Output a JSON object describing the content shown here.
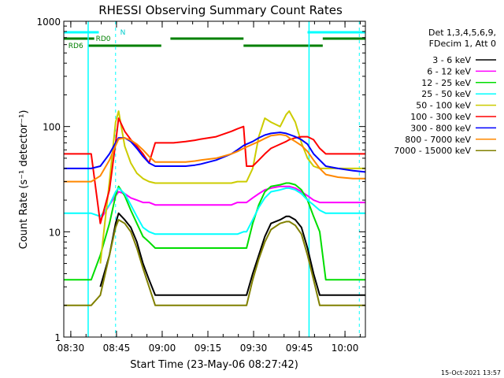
{
  "chart_data": {
    "type": "line",
    "title": "RHESSI Observing Summary Count Rates",
    "xlabel": "Start Time (23-May-06 08:27:42)",
    "ylabel": "Count Rate (s⁻¹ detector⁻¹)",
    "yscale": "log",
    "ylim": [
      1,
      1000
    ],
    "xlim_minutes_after_0827": [
      0,
      99
    ],
    "x_ticks": [
      "08:30",
      "08:45",
      "09:00",
      "09:15",
      "09:30",
      "09:45",
      "10:00"
    ],
    "y_ticks": [
      "1",
      "10",
      "100",
      "1000"
    ],
    "timestamp": "15-Oct-2021 13:57",
    "legend_header": [
      "Det 1,3,4,5,6,9,",
      "FDecim 1, Att 0"
    ],
    "flag_labels": [
      "N",
      "RD0",
      "RD6"
    ],
    "x_minutes": [
      0,
      5,
      9,
      12,
      15,
      17,
      18,
      20,
      22,
      24,
      26,
      28,
      30,
      33,
      36,
      40,
      43,
      45,
      50,
      55,
      57,
      59,
      60,
      62,
      64,
      66,
      68,
      71,
      73,
      74,
      76,
      78,
      80,
      82,
      84,
      86,
      90,
      95,
      99
    ],
    "series": [
      {
        "name": "3 - 6 keV",
        "color": "#000000",
        "values": [
          null,
          null,
          null,
          3,
          6,
          12,
          15,
          13,
          11,
          8,
          5,
          3.5,
          2.5,
          2.5,
          2.5,
          2.5,
          2.5,
          2.5,
          2.5,
          2.5,
          2.5,
          2.5,
          2.5,
          4,
          6,
          9,
          12,
          13,
          14,
          14,
          13,
          11,
          7,
          4,
          2.5,
          2.5,
          2.5,
          2.5,
          2.5
        ]
      },
      {
        "name": "6 - 12 keV",
        "color": "#ff00ff",
        "values": [
          null,
          null,
          null,
          13,
          18,
          22,
          24,
          23,
          21,
          20,
          19,
          19,
          18,
          18,
          18,
          18,
          18,
          18,
          18,
          18,
          19,
          19,
          19,
          21,
          23,
          25,
          26,
          27,
          27,
          27,
          26,
          24,
          22,
          20,
          19,
          19,
          19,
          19,
          19
        ]
      },
      {
        "name": "12 - 25 keV",
        "color": "#00dd00",
        "values": [
          3.5,
          3.5,
          3.5,
          6,
          12,
          22,
          27,
          22,
          16,
          12,
          9,
          8,
          7,
          7,
          7,
          7,
          7,
          7,
          7,
          7,
          7,
          7,
          7,
          12,
          18,
          24,
          27,
          28,
          29,
          29,
          28,
          25,
          20,
          14,
          10,
          3.5,
          3.5,
          3.5,
          3.5
        ]
      },
      {
        "name": "25 - 50 keV",
        "color": "#00ffff",
        "values": [
          15,
          15,
          15,
          14,
          18,
          24,
          26,
          23,
          18,
          14,
          11,
          10,
          9.5,
          9.5,
          9.5,
          9.5,
          9.5,
          9.5,
          9.5,
          9.5,
          9.5,
          10,
          10,
          13,
          17,
          21,
          24,
          25,
          26,
          26,
          25,
          23,
          20,
          18,
          16,
          15,
          15,
          15,
          15
        ]
      },
      {
        "name": "50 - 100 keV",
        "color": "#cccc00",
        "values": [
          null,
          null,
          null,
          5,
          30,
          110,
          140,
          65,
          45,
          36,
          32,
          30,
          29,
          29,
          29,
          29,
          29,
          29,
          29,
          29,
          30,
          30,
          30,
          40,
          80,
          120,
          110,
          100,
          130,
          140,
          110,
          70,
          50,
          42,
          40,
          40,
          40,
          40,
          40
        ]
      },
      {
        "name": "100 - 300 keV",
        "color": "#ff0000",
        "values": [
          55,
          55,
          55,
          12,
          25,
          70,
          120,
          90,
          75,
          65,
          55,
          45,
          70,
          70,
          70,
          72,
          74,
          76,
          80,
          90,
          95,
          100,
          42,
          42,
          48,
          55,
          62,
          68,
          72,
          75,
          78,
          80,
          80,
          75,
          62,
          55,
          55,
          55,
          55
        ]
      },
      {
        "name": "300 - 800 keV",
        "color": "#0000ff",
        "values": [
          40,
          40,
          40,
          42,
          55,
          70,
          78,
          78,
          72,
          62,
          52,
          45,
          42,
          42,
          42,
          42,
          43,
          44,
          48,
          55,
          60,
          66,
          68,
          72,
          78,
          83,
          86,
          88,
          86,
          84,
          80,
          75,
          68,
          55,
          48,
          42,
          40,
          38,
          37
        ]
      },
      {
        "name": "800 - 7000 keV",
        "color": "#ff8800",
        "values": [
          30,
          30,
          30,
          34,
          48,
          66,
          76,
          78,
          74,
          68,
          60,
          52,
          46,
          46,
          46,
          46,
          47,
          48,
          50,
          55,
          58,
          62,
          64,
          68,
          72,
          77,
          82,
          84,
          82,
          78,
          72,
          66,
          58,
          48,
          40,
          35,
          33,
          32,
          32
        ]
      },
      {
        "name": "7000 - 15000 keV",
        "color": "#808000",
        "values": [
          2,
          2,
          2,
          2.5,
          6,
          11,
          13,
          12,
          10,
          7,
          4.5,
          3,
          2,
          2,
          2,
          2,
          2,
          2,
          2,
          2,
          2,
          2,
          2,
          3.5,
          5.5,
          8,
          10.5,
          12,
          12.5,
          12.5,
          11.5,
          9.5,
          6,
          3.5,
          2,
          2,
          2,
          2,
          2
        ]
      }
    ]
  }
}
